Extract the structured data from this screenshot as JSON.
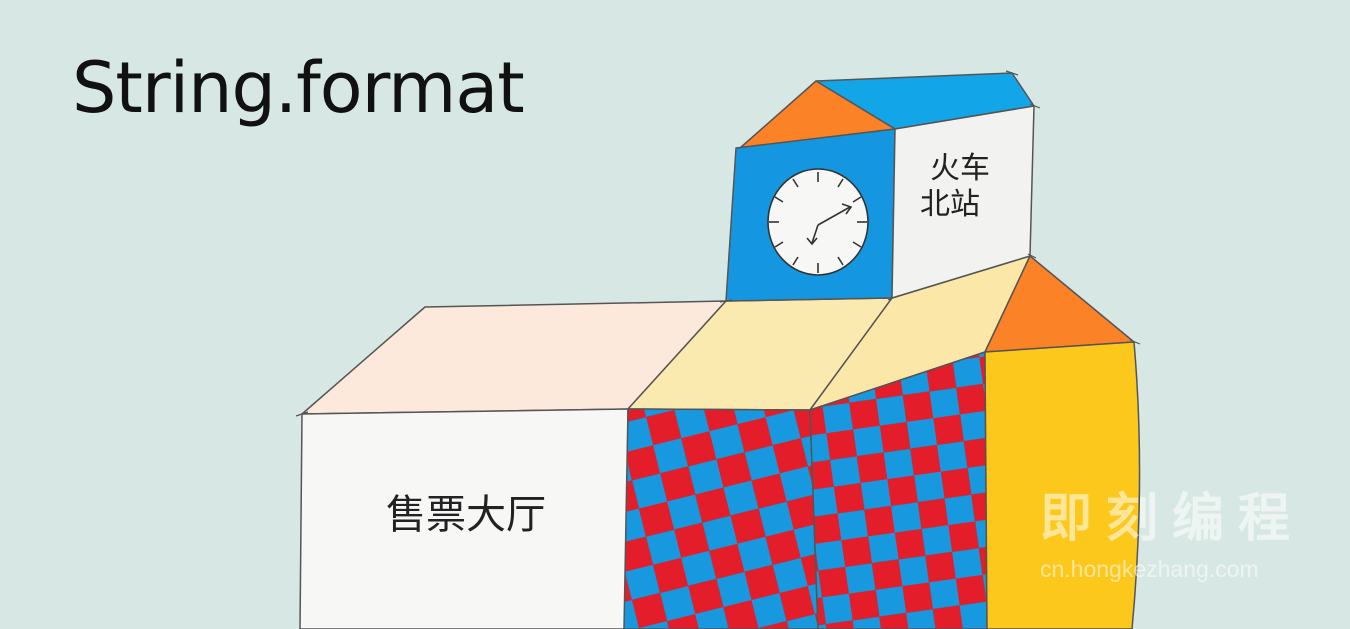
{
  "title": "String.format",
  "illustration": {
    "clock_sign_line1": "火车",
    "clock_sign_line2": "北站",
    "hall_sign": "售票大厅",
    "colors": {
      "background": "#d7e8e4",
      "roof_blue": "#12a6e8",
      "roof_orange": "#fb8226",
      "clock_face_blue": "#1497e0",
      "cream": "#fbeab0",
      "hall_top": "#fde8dc",
      "hall_front": "#f7f7f6",
      "brick_red": "#e41d2a",
      "brick_blue": "#1898df",
      "tower_yellow": "#fdc81c"
    }
  },
  "watermark": {
    "title": "即刻编程",
    "url": "cn.hongkezhang.com"
  }
}
